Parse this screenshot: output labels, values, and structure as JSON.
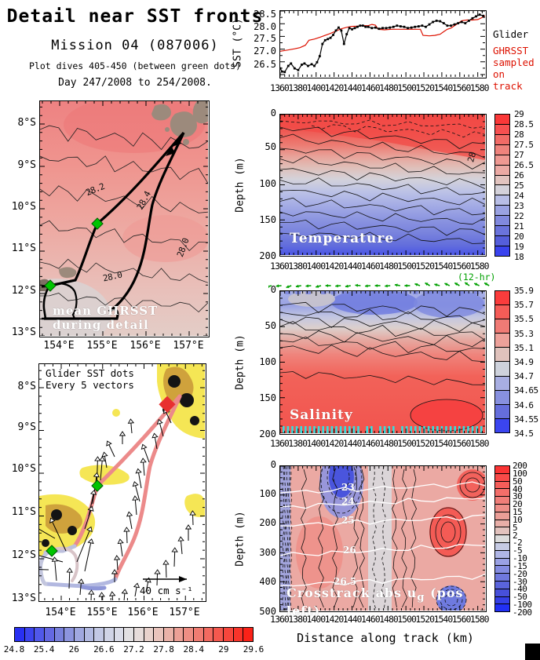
{
  "header": {
    "title": "Detail near SST fronts",
    "subtitle": "Mission 04 (087006)",
    "line3": "Plot dives 405-450 (between green dots)",
    "line4": "Day 247/2008 to 254/2008."
  },
  "map_top": {
    "caption": "mean GHRSST during detail",
    "lat_ticks": [
      "8°S",
      "9°S",
      "10°S",
      "11°S",
      "12°S",
      "13°S"
    ],
    "lon_ticks": [
      "154°E",
      "155°E",
      "156°E",
      "157°E"
    ],
    "contour_labels": [
      "28.2",
      "28.4",
      "28.0",
      "28.0"
    ]
  },
  "map_bottom": {
    "note_line1": "Glider SST dots",
    "note_line2": "Every 5 vectors",
    "scale_label": "40 cm s⁻¹",
    "lat_ticks": [
      "8°S",
      "9°S",
      "10°S",
      "11°S",
      "12°S",
      "13°S"
    ],
    "lon_ticks": [
      "154°E",
      "155°E",
      "156°E",
      "157°E"
    ],
    "vectors": [
      [
        168,
        75,
        115,
        20
      ],
      [
        158,
        92,
        105,
        22
      ],
      [
        150,
        108,
        100,
        20
      ],
      [
        140,
        125,
        110,
        24
      ],
      [
        134,
        142,
        95,
        22
      ],
      [
        130,
        158,
        100,
        25
      ],
      [
        128,
        175,
        105,
        26
      ],
      [
        124,
        192,
        95,
        24
      ],
      [
        118,
        210,
        100,
        22
      ],
      [
        112,
        228,
        92,
        20
      ],
      [
        106,
        245,
        98,
        22
      ],
      [
        100,
        262,
        94,
        18
      ],
      [
        96,
        278,
        90,
        16
      ],
      [
        118,
        88,
        95,
        18
      ],
      [
        106,
        102,
        90,
        16
      ],
      [
        96,
        118,
        115,
        22
      ],
      [
        86,
        132,
        100,
        20
      ],
      [
        78,
        148,
        85,
        30
      ],
      [
        73,
        162,
        88,
        44
      ],
      [
        68,
        178,
        82,
        40
      ],
      [
        63,
        194,
        78,
        34
      ],
      [
        58,
        210,
        72,
        30
      ],
      [
        20,
        222,
        150,
        52
      ],
      [
        34,
        238,
        115,
        46
      ],
      [
        48,
        252,
        68,
        48
      ],
      [
        58,
        264,
        78,
        42
      ],
      [
        30,
        252,
        165,
        45
      ],
      [
        12,
        262,
        178,
        40
      ],
      [
        22,
        276,
        95,
        30
      ],
      [
        38,
        286,
        88,
        26
      ],
      [
        52,
        294,
        85,
        20
      ],
      [
        66,
        302,
        88,
        14
      ],
      [
        80,
        305,
        92,
        14
      ],
      [
        94,
        305,
        95,
        15
      ],
      [
        108,
        302,
        85,
        15
      ],
      [
        122,
        296,
        80,
        17
      ],
      [
        136,
        290,
        78,
        18
      ],
      [
        150,
        282,
        88,
        20
      ],
      [
        162,
        272,
        92,
        22
      ],
      [
        172,
        258,
        88,
        24
      ],
      [
        182,
        242,
        95,
        22
      ],
      [
        190,
        225,
        90,
        20
      ],
      [
        196,
        205,
        92,
        18
      ]
    ]
  },
  "bottom_colorbar": {
    "labels": [
      "24.8",
      "25.4",
      "26",
      "26.6",
      "27.2",
      "27.8",
      "28.4",
      "29",
      "29.6"
    ],
    "colors": [
      "#2830f2",
      "#3c44ee",
      "#5058ea",
      "#6468e2",
      "#7880dc",
      "#8c94de",
      "#a0a8e0",
      "#b2bae2",
      "#c2c8e4",
      "#d0d4e6",
      "#dadce8",
      "#e2e0e2",
      "#e6dcda",
      "#e8d2cc",
      "#e9c4bc",
      "#eab2a8",
      "#eca096",
      "#ee8e84",
      "#f07c72",
      "#f26a60",
      "#f4584e",
      "#f6463c",
      "#f8342a",
      "#fa2218"
    ]
  },
  "sst_plot": {
    "ylabel": "SST (°C)",
    "yticks": [
      "28.5",
      "28.0",
      "27.5",
      "27.0",
      "26.5"
    ],
    "legend_glider": "Glider",
    "legend_ghrsst": [
      "GHRSST",
      "sampled",
      "on track"
    ],
    "glider_color": "#000000",
    "ghrsst_color": "#dd1100"
  },
  "xticks": [
    "1360",
    "1380",
    "1400",
    "1420",
    "1440",
    "1460",
    "1480",
    "1500",
    "1520",
    "1540",
    "1560",
    "1580"
  ],
  "twelve_hr_label": "(12-hr)",
  "green_arrow_angles": [
    195,
    185,
    200,
    190,
    185,
    195,
    180,
    185,
    190,
    175,
    185,
    180,
    185,
    170,
    180,
    160,
    150,
    165,
    155,
    150,
    145,
    155,
    150
  ],
  "temperature": {
    "label": "Temperature",
    "ylabel": "Depth (m)",
    "yticks": [
      "0",
      "50",
      "100",
      "150",
      "200"
    ],
    "cb_labels": [
      "29",
      "28.5",
      "28",
      "27.5",
      "27",
      "26.5",
      "26",
      "25",
      "24",
      "23",
      "22",
      "21",
      "20",
      "19",
      "18"
    ],
    "cb_colors": [
      "#fa3838",
      "#f75050",
      "#f26b66",
      "#ef837c",
      "#ef9992",
      "#ecaaa4",
      "#e2c4bf",
      "#d4d2da",
      "#b8bee6",
      "#9aa2e2",
      "#8189de",
      "#6a73dc",
      "#555edb",
      "#3a43ee"
    ],
    "contour_label": "28"
  },
  "salinity": {
    "label": "Salinity",
    "ylabel": "Depth (m)",
    "yticks": [
      "0",
      "50",
      "100",
      "150",
      "200"
    ],
    "cb_labels": [
      "35.9",
      "35.7",
      "35.5",
      "35.3",
      "35.1",
      "34.9",
      "34.7",
      "34.65",
      "34.6",
      "34.55",
      "34.5"
    ],
    "cb_colors": [
      "#fa3c3c",
      "#f55c57",
      "#f07b75",
      "#eda19a",
      "#e0c2bc",
      "#ced2dc",
      "#a8aee2",
      "#8790df",
      "#656edc",
      "#3b45f0"
    ]
  },
  "crosstrack": {
    "label_pre": "Crosstrack abs u",
    "label_sub": "g",
    "label_post": " (pos left)",
    "ylabel": "Depth (m)",
    "yticks": [
      "0",
      "100",
      "200",
      "300",
      "400",
      "500"
    ],
    "cb_labels": [
      "200",
      "100",
      "50",
      "40",
      "30",
      "20",
      "15",
      "10",
      "5",
      "2",
      "-2",
      "-5",
      "-10",
      "-15",
      "-20",
      "-30",
      "-40",
      "-50",
      "-100",
      "-200"
    ],
    "cb_colors": [
      "#fa3434",
      "#f84a48",
      "#f55d59",
      "#f36e69",
      "#f07e79",
      "#ee8e88",
      "#eb9e97",
      "#e8aea7",
      "#e2c2bd",
      "#dcdcdc",
      "#c6cbe4",
      "#b0b6e6",
      "#9aa1e4",
      "#848ce1",
      "#6f78de",
      "#5a64dc",
      "#4750da",
      "#3540e6",
      "#2130f4"
    ],
    "isopycnals": [
      "23",
      "24",
      "25",
      "26",
      "26.5"
    ],
    "xlabel": "Distance along track (km)"
  },
  "chart_data": [
    {
      "id": "sst_along_track",
      "type": "line",
      "ylabel": "SST (°C)",
      "xlabel": "Distance along track (km)",
      "xlim": [
        1360,
        1588
      ],
      "ylim": [
        26.0,
        28.7
      ],
      "xticks": [
        1360,
        1380,
        1400,
        1420,
        1440,
        1460,
        1480,
        1500,
        1520,
        1540,
        1560,
        1580
      ],
      "yticks": [
        26.5,
        27.0,
        27.5,
        28.0,
        28.5
      ],
      "legend_position": "right",
      "series": [
        {
          "name": "Glider",
          "color": "#000000",
          "marker": "square",
          "points": [
            [
              1360,
              26.35
            ],
            [
              1362,
              26.22
            ],
            [
              1365,
              26.2
            ],
            [
              1369,
              26.45
            ],
            [
              1372,
              26.55
            ],
            [
              1376,
              26.35
            ],
            [
              1380,
              26.28
            ],
            [
              1384,
              26.5
            ],
            [
              1387,
              26.55
            ],
            [
              1391,
              26.45
            ],
            [
              1395,
              26.52
            ],
            [
              1398,
              26.45
            ],
            [
              1401,
              26.6
            ],
            [
              1404,
              26.85
            ],
            [
              1407,
              27.35
            ],
            [
              1410,
              27.5
            ],
            [
              1413,
              27.55
            ],
            [
              1416,
              27.6
            ],
            [
              1419,
              27.72
            ],
            [
              1422,
              27.9
            ],
            [
              1425,
              28.02
            ],
            [
              1428,
              27.9
            ],
            [
              1431,
              27.35
            ],
            [
              1434,
              27.75
            ],
            [
              1437,
              28.0
            ],
            [
              1440,
              27.95
            ],
            [
              1443,
              28.0
            ],
            [
              1446,
              28.05
            ],
            [
              1449,
              28.1
            ],
            [
              1452,
              28.1
            ],
            [
              1455,
              28.05
            ],
            [
              1458,
              28.05
            ],
            [
              1462,
              28.0
            ],
            [
              1466,
              28.02
            ],
            [
              1470,
              27.97
            ],
            [
              1474,
              28.0
            ],
            [
              1478,
              28.0
            ],
            [
              1482,
              28.02
            ],
            [
              1486,
              28.05
            ],
            [
              1490,
              28.1
            ],
            [
              1494,
              28.07
            ],
            [
              1498,
              28.05
            ],
            [
              1502,
              28.0
            ],
            [
              1506,
              28.02
            ],
            [
              1510,
              28.05
            ],
            [
              1514,
              28.07
            ],
            [
              1518,
              28.1
            ],
            [
              1522,
              28.05
            ],
            [
              1526,
              28.15
            ],
            [
              1530,
              28.25
            ],
            [
              1534,
              28.3
            ],
            [
              1538,
              28.28
            ],
            [
              1542,
              28.2
            ],
            [
              1546,
              28.1
            ],
            [
              1550,
              28.1
            ],
            [
              1554,
              28.15
            ],
            [
              1558,
              28.2
            ],
            [
              1562,
              28.25
            ],
            [
              1566,
              28.2
            ],
            [
              1570,
              28.3
            ],
            [
              1574,
              28.4
            ],
            [
              1578,
              28.48
            ],
            [
              1582,
              28.55
            ],
            [
              1586,
              28.5
            ]
          ]
        },
        {
          "name": "GHRSST sampled on track",
          "color": "#dd1100",
          "marker": "none",
          "points": [
            [
              1360,
              27.05
            ],
            [
              1368,
              27.1
            ],
            [
              1376,
              27.15
            ],
            [
              1382,
              27.2
            ],
            [
              1388,
              27.3
            ],
            [
              1392,
              27.5
            ],
            [
              1398,
              27.55
            ],
            [
              1404,
              27.62
            ],
            [
              1410,
              27.7
            ],
            [
              1416,
              27.78
            ],
            [
              1422,
              27.88
            ],
            [
              1428,
              27.97
            ],
            [
              1434,
              28.03
            ],
            [
              1440,
              28.07
            ],
            [
              1446,
              28.08
            ],
            [
              1452,
              28.1
            ],
            [
              1458,
              28.1
            ],
            [
              1462,
              28.15
            ],
            [
              1466,
              28.12
            ],
            [
              1469,
              27.95
            ],
            [
              1476,
              27.93
            ],
            [
              1484,
              27.95
            ],
            [
              1492,
              27.95
            ],
            [
              1500,
              27.95
            ],
            [
              1508,
              27.95
            ],
            [
              1516,
              27.95
            ],
            [
              1519,
              27.7
            ],
            [
              1526,
              27.68
            ],
            [
              1532,
              27.7
            ],
            [
              1538,
              27.75
            ],
            [
              1542,
              27.85
            ],
            [
              1546,
              27.95
            ],
            [
              1550,
              28.0
            ],
            [
              1554,
              28.1
            ],
            [
              1558,
              28.2
            ],
            [
              1562,
              28.3
            ],
            [
              1568,
              28.33
            ],
            [
              1574,
              28.33
            ],
            [
              1580,
              28.35
            ],
            [
              1584,
              28.42
            ],
            [
              1588,
              28.5
            ]
          ]
        }
      ]
    },
    {
      "id": "temperature_section",
      "type": "heatmap",
      "title": "Temperature",
      "xlabel": "Distance along track (km)",
      "ylabel": "Depth (m)",
      "xlim": [
        1360,
        1588
      ],
      "depth_range": [
        0,
        200
      ],
      "units": "°C",
      "colorbar_ticks": [
        29,
        28.5,
        28,
        27.5,
        27,
        26.5,
        26,
        25,
        24,
        23,
        22,
        21,
        20,
        19,
        18
      ],
      "inline_contour_labels": [
        28
      ],
      "summary": "Warm >28°C surface layer thickening toward the track end; thermocline 24-27°C between ~40-120 m; <20°C below ~170 m."
    },
    {
      "id": "salinity_section",
      "type": "heatmap",
      "title": "Salinity",
      "xlabel": "Distance along track (km)",
      "ylabel": "Depth (m)",
      "xlim": [
        1360,
        1588
      ],
      "depth_range": [
        0,
        200
      ],
      "colorbar_ticks": [
        35.9,
        35.7,
        35.5,
        35.3,
        35.1,
        34.9,
        34.7,
        34.65,
        34.6,
        34.55,
        34.5
      ],
      "summary": "Fresh 34.6-34.9 surface layer over a salty >35.5 subsurface core; saltiest >35.7 patch near 1500-1580 km below 130 m; cyan marks show dives, green arrows every 12 hr."
    },
    {
      "id": "crosstrack_velocity_section",
      "type": "heatmap",
      "title": "Crosstrack abs ug (pos left)",
      "xlabel": "Distance along track (km)",
      "ylabel": "Depth (m)",
      "xlim": [
        1360,
        1588
      ],
      "depth_range": [
        0,
        500
      ],
      "units": "cm/s",
      "colorbar_ticks": [
        200,
        100,
        50,
        40,
        30,
        20,
        15,
        10,
        5,
        2,
        -2,
        -5,
        -10,
        -15,
        -20,
        -30,
        -40,
        -50,
        -100,
        -200
      ],
      "isopycnal_contours": [
        23,
        24,
        25,
        26,
        26.5
      ],
      "summary": "Mostly positive (red) crosstrack flow; strong negative (blue) jet near 1420-1440 km in upper 150 m; strong positive core near 1540-1560 km at 150-300 m."
    },
    {
      "id": "mean_ghrsst_map",
      "type": "map",
      "caption": "mean GHRSST during detail",
      "lat_ticks": [
        "8°S",
        "9°S",
        "10°S",
        "11°S",
        "12°S",
        "13°S"
      ],
      "lon_ticks": [
        "154°E",
        "155°E",
        "156°E",
        "157°E"
      ],
      "sst_contour_labels": [
        28.2,
        28.4,
        28.0
      ],
      "markers": "green diamonds at dives 405 and 450"
    },
    {
      "id": "glider_sst_map",
      "type": "map",
      "caption": "Glider SST dots / Every 5 vectors",
      "vector_scale": "40 cm s⁻¹",
      "colorbar_ticks": [
        24.8,
        25.4,
        26,
        26.6,
        27.2,
        27.8,
        28.4,
        29,
        29.6
      ]
    }
  ]
}
